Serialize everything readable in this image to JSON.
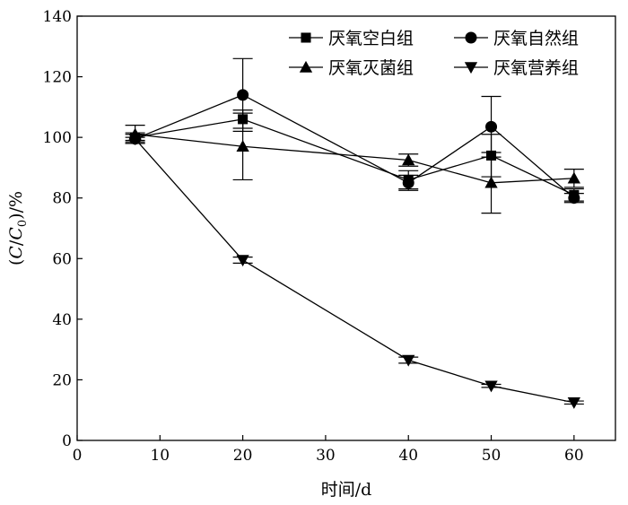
{
  "chart_data": {
    "type": "line",
    "xlabel": "时间/d",
    "ylabel": "(C/C0)/%",
    "ylabel_parts": {
      "open": "(",
      "c": "C",
      "slash": "/",
      "c0": "C",
      "sub0": "0",
      "close": ")/%"
    },
    "xlim": [
      0,
      65
    ],
    "ylim": [
      0,
      140
    ],
    "x_ticks": [
      0,
      10,
      20,
      30,
      40,
      50,
      60
    ],
    "y_ticks": [
      0,
      20,
      40,
      60,
      80,
      100,
      120,
      140
    ],
    "legend_placement": "top-right",
    "grid": false,
    "series": [
      {
        "name": "厌氧空白组",
        "marker": "square",
        "x": [
          7,
          20,
          40,
          50,
          60
        ],
        "y": [
          100,
          106,
          86,
          94,
          81
        ],
        "err": [
          1.5,
          3,
          3,
          7,
          2
        ]
      },
      {
        "name": "厌氧自然组",
        "marker": "circle",
        "x": [
          7,
          20,
          40,
          50,
          60
        ],
        "y": [
          99.5,
          114,
          85,
          103.5,
          80
        ],
        "err": [
          1.5,
          12,
          2.5,
          10,
          1.5
        ]
      },
      {
        "name": "厌氧灭菌组",
        "marker": "triangle-up",
        "x": [
          7,
          20,
          40,
          50,
          60
        ],
        "y": [
          101,
          97,
          92.5,
          85,
          86.5
        ],
        "err": [
          3,
          11,
          2,
          10,
          3
        ]
      },
      {
        "name": "厌氧营养组",
        "marker": "triangle-down",
        "x": [
          7,
          20,
          40,
          50,
          60
        ],
        "y": [
          99.5,
          59.5,
          26.5,
          18,
          12.5
        ],
        "err": [
          0.5,
          1,
          1,
          0.5,
          0.5
        ]
      }
    ]
  }
}
